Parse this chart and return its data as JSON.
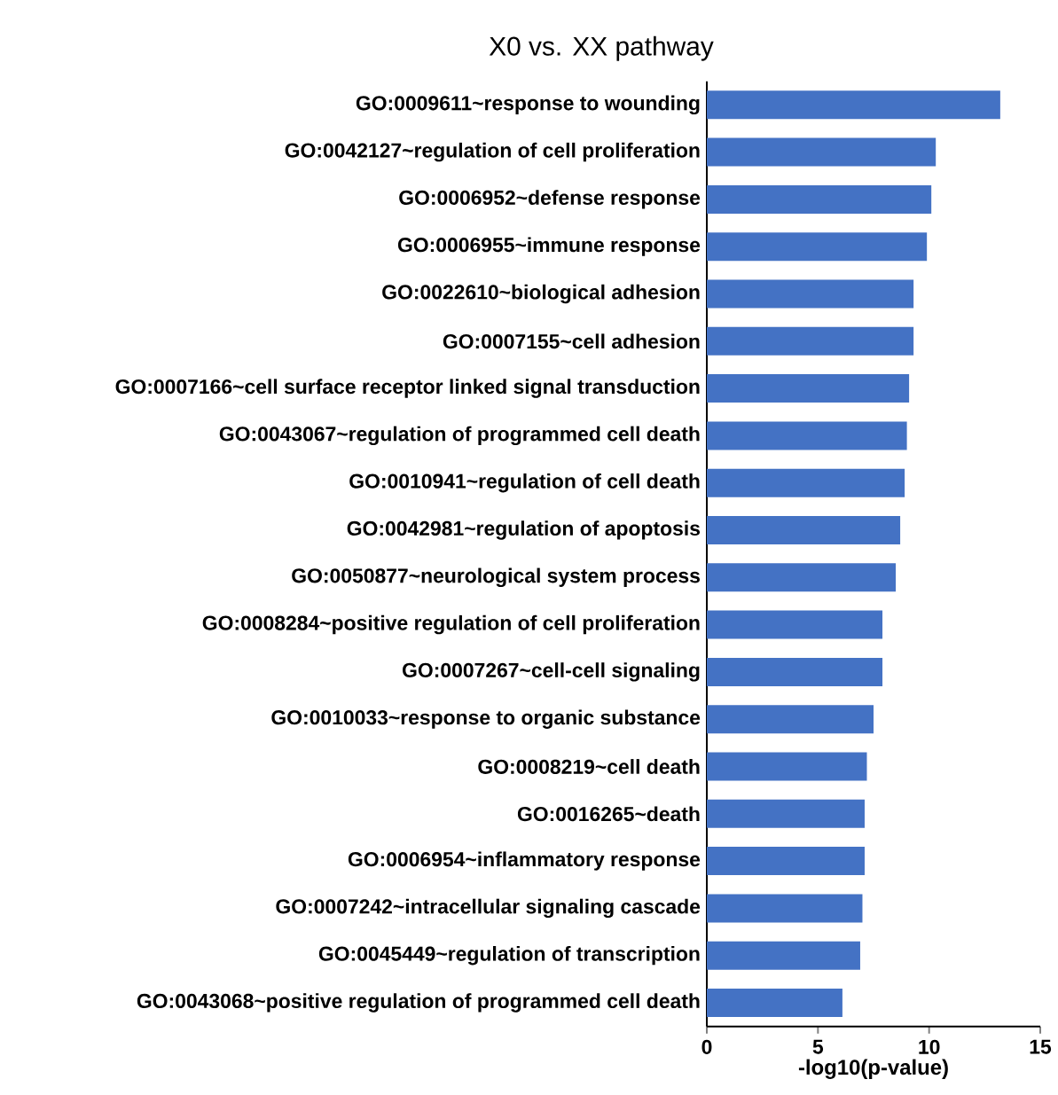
{
  "chart_data": {
    "type": "bar",
    "orientation": "horizontal",
    "title": "X0 vs. XX pathway",
    "xlabel": "-log10(p-value)",
    "categories": [
      "GO:0009611~response to wounding",
      "GO:0042127~regulation of cell proliferation",
      "GO:0006952~defense response",
      "GO:0006955~immune response",
      "GO:0022610~biological adhesion",
      "GO:0007155~cell adhesion",
      "GO:0007166~cell surface receptor linked signal transduction",
      "GO:0043067~regulation of programmed cell death",
      "GO:0010941~regulation of cell death",
      "GO:0042981~regulation of apoptosis",
      "GO:0050877~neurological system process",
      "GO:0008284~positive regulation of cell proliferation",
      "GO:0007267~cell-cell signaling",
      "GO:0010033~response to organic substance",
      "GO:0008219~cell death",
      "GO:0016265~death",
      "GO:0006954~inflammatory response",
      "GO:0007242~intracellular signaling cascade",
      "GO:0045449~regulation of transcription",
      "GO:0043068~positive regulation of programmed cell death"
    ],
    "values": [
      13.2,
      10.3,
      10.1,
      9.9,
      9.3,
      9.3,
      9.1,
      9.0,
      8.9,
      8.7,
      8.5,
      7.9,
      7.9,
      7.5,
      7.2,
      7.1,
      7.1,
      7.0,
      6.9,
      6.1
    ],
    "color": "#4472c4",
    "xlim": [
      0,
      15
    ],
    "xticks": [
      0,
      5,
      10,
      15
    ]
  }
}
